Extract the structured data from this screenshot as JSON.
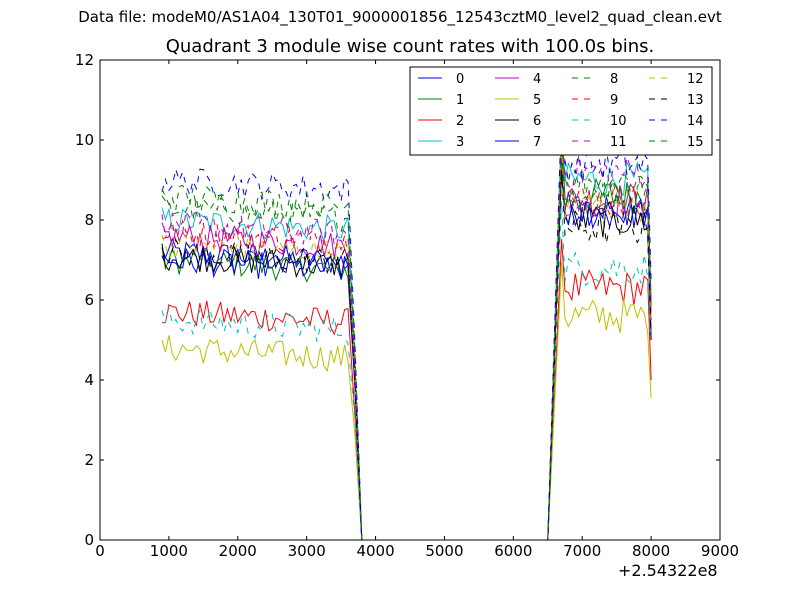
{
  "chart_data": {
    "type": "line",
    "suptitle": "Data file: modeM0/AS1A04_130T01_9000001856_12543cztM0_level2_quad_clean.evt",
    "title": "Quadrant 3 module wise count rates with 100.0s bins.",
    "xlabel": "",
    "ylabel": "",
    "x_offset_label": "+2.54322e8",
    "xlim": [
      0,
      9000
    ],
    "ylim": [
      0,
      12
    ],
    "xticks": [
      0,
      1000,
      2000,
      3000,
      4000,
      5000,
      6000,
      7000,
      8000,
      9000
    ],
    "xtick_labels": [
      "0",
      "1000",
      "2000",
      "3000",
      "4000",
      "5000",
      "6000",
      "7000",
      "8000",
      "9000"
    ],
    "yticks": [
      0,
      2,
      4,
      6,
      8,
      10,
      12
    ],
    "ytick_labels": [
      "0",
      "2",
      "4",
      "6",
      "8",
      "10",
      "12"
    ],
    "grid": false,
    "legend_position": "top-right",
    "legend_columns": 4,
    "segments": {
      "seg1_start": 900,
      "seg1_end": 3600,
      "drop_points": [
        3700,
        3800
      ],
      "gap_start": 3800,
      "gap_end": 6500,
      "seg2_start": 6700,
      "seg2_end": 7950,
      "tail_x": 8000
    },
    "series": [
      {
        "name": "0",
        "color": "#0000ff",
        "dashed": false,
        "base1": 7.2,
        "base2": 8.3,
        "tail": 5.0
      },
      {
        "name": "1",
        "color": "#008000",
        "dashed": false,
        "base1": 7.0,
        "base2": 8.6,
        "tail": 5.5
      },
      {
        "name": "2",
        "color": "#ff0000",
        "dashed": false,
        "base1": 5.7,
        "base2": 6.3,
        "tail": 4.0
      },
      {
        "name": "3",
        "color": "#00bfbf",
        "dashed": false,
        "base1": 8.0,
        "base2": 9.0,
        "tail": 5.5
      },
      {
        "name": "4",
        "color": "#bf00bf",
        "dashed": false,
        "base1": 7.6,
        "base2": 8.5,
        "tail": 5.5
      },
      {
        "name": "5",
        "color": "#bfbf00",
        "dashed": false,
        "base1": 4.8,
        "base2": 5.6,
        "tail": 3.55
      },
      {
        "name": "6",
        "color": "#000000",
        "dashed": false,
        "base1": 7.1,
        "base2": 8.0,
        "tail": 5.0
      },
      {
        "name": "7",
        "color": "#0000ff",
        "dashed": false,
        "base1": 7.0,
        "base2": 8.2,
        "tail": 5.0
      },
      {
        "name": "8",
        "color": "#008000",
        "dashed": true,
        "base1": 8.3,
        "base2": 9.0,
        "tail": 6.0
      },
      {
        "name": "9",
        "color": "#ff0000",
        "dashed": true,
        "base1": 7.7,
        "base2": 8.5,
        "tail": 5.5
      },
      {
        "name": "10",
        "color": "#00bfbf",
        "dashed": true,
        "base1": 5.5,
        "base2": 6.8,
        "tail": 5.0
      },
      {
        "name": "11",
        "color": "#bf00bf",
        "dashed": true,
        "base1": 7.9,
        "base2": 9.2,
        "tail": 6.0
      },
      {
        "name": "12",
        "color": "#bfbf00",
        "dashed": true,
        "base1": 7.4,
        "base2": 8.4,
        "tail": 5.5
      },
      {
        "name": "13",
        "color": "#000000",
        "dashed": true,
        "base1": 7.2,
        "base2": 7.8,
        "tail": 5.0
      },
      {
        "name": "14",
        "color": "#0000ff",
        "dashed": true,
        "base1": 9.0,
        "base2": 9.4,
        "tail": 6.5
      },
      {
        "name": "15",
        "color": "#008000",
        "dashed": true,
        "base1": 8.6,
        "base2": 8.6,
        "tail": 5.8
      }
    ]
  }
}
